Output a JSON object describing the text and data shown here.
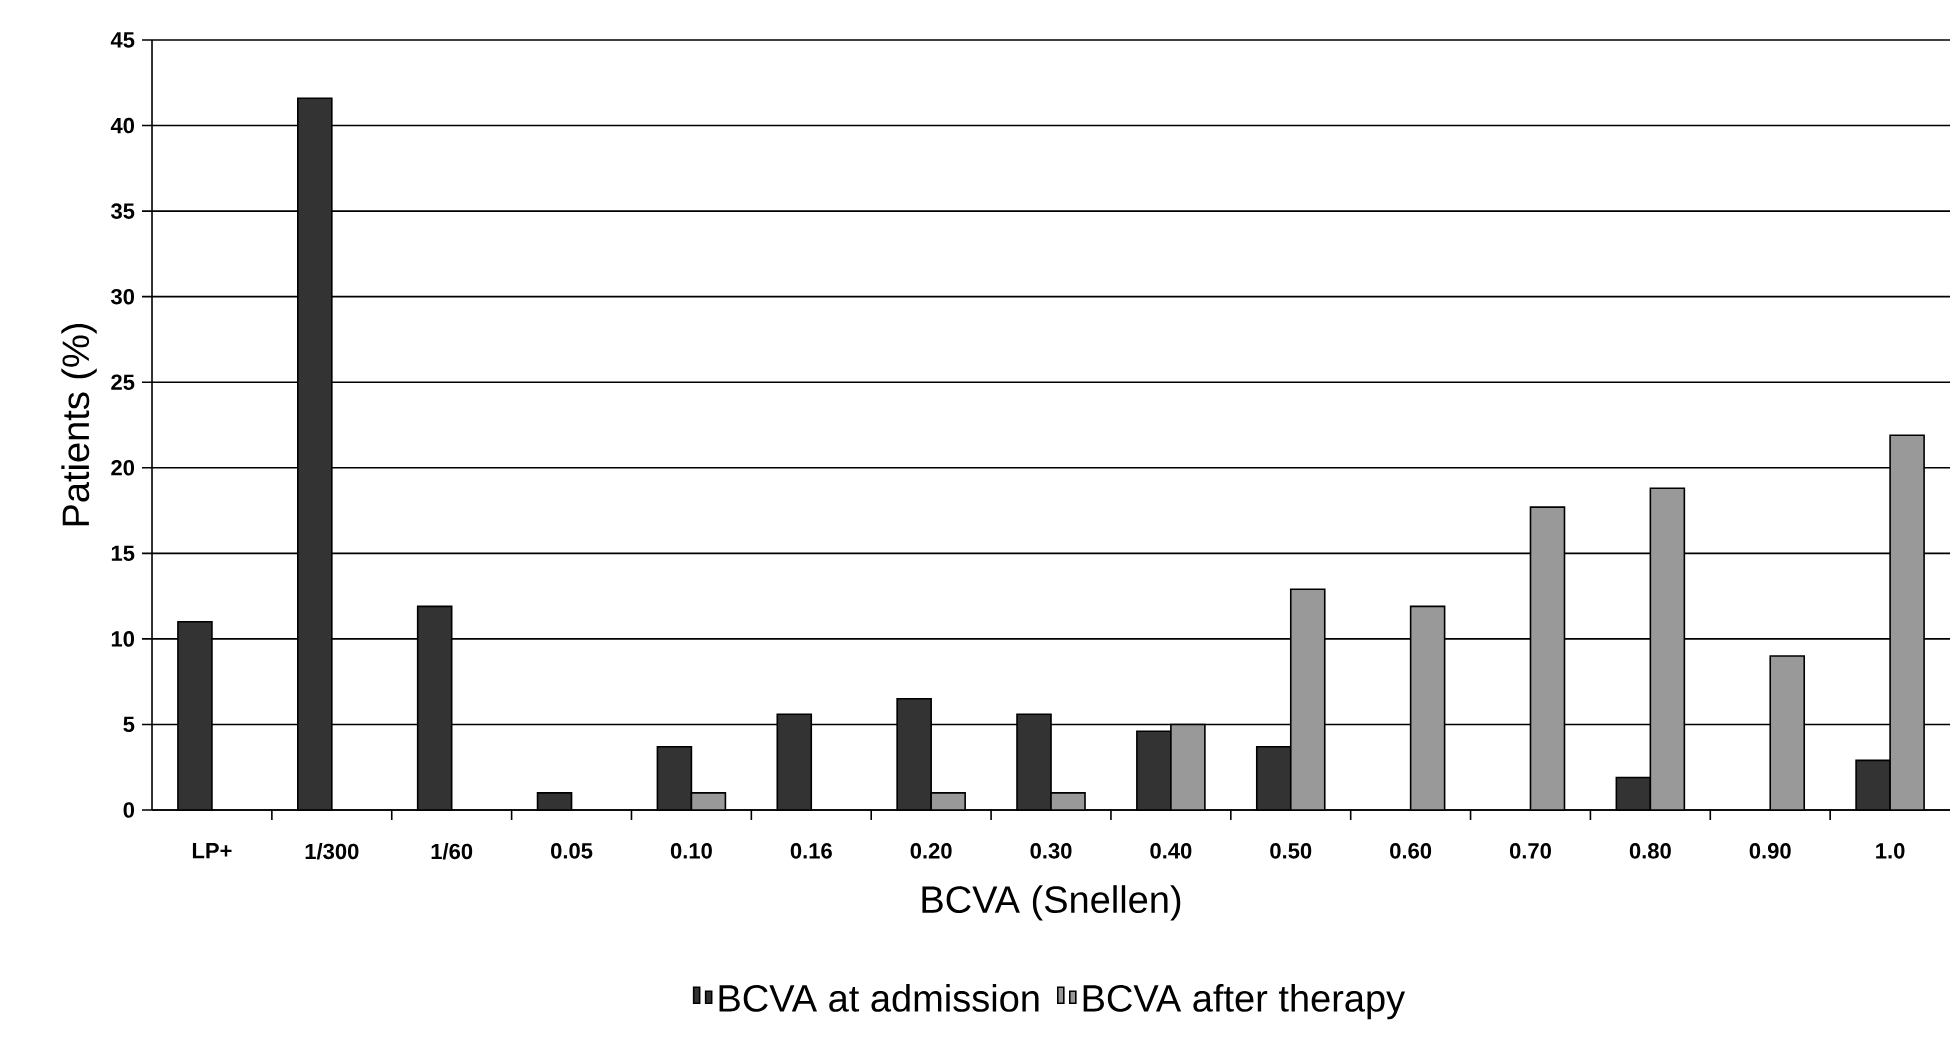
{
  "chart_data": {
    "type": "bar",
    "xlabel": "BCVA (Snellen)",
    "ylabel": "Patients (%)",
    "categories": [
      "LP+",
      "1/300",
      "1/60",
      "0.05",
      "0.10",
      "0.16",
      "0.20",
      "0.30",
      "0.40",
      "0.50",
      "0.60",
      "0.70",
      "0.80",
      "0.90",
      "1.0"
    ],
    "series": [
      {
        "name": "BCVA at admission",
        "color": "#333333",
        "values": [
          11,
          41.6,
          11.9,
          1,
          3.7,
          5.6,
          6.5,
          5.6,
          4.6,
          3.7,
          null,
          null,
          1.9,
          null,
          2.9
        ]
      },
      {
        "name": "BCVA after therapy",
        "color": "#999999",
        "values": [
          null,
          null,
          null,
          null,
          1,
          null,
          1,
          1,
          5,
          12.9,
          11.9,
          17.7,
          18.8,
          9,
          21.9
        ]
      }
    ],
    "ylim": [
      0,
      45
    ],
    "yticks": [
      0,
      5,
      10,
      15,
      20,
      25,
      30,
      35,
      40,
      45
    ],
    "grid": "y",
    "legend": "bottom"
  }
}
